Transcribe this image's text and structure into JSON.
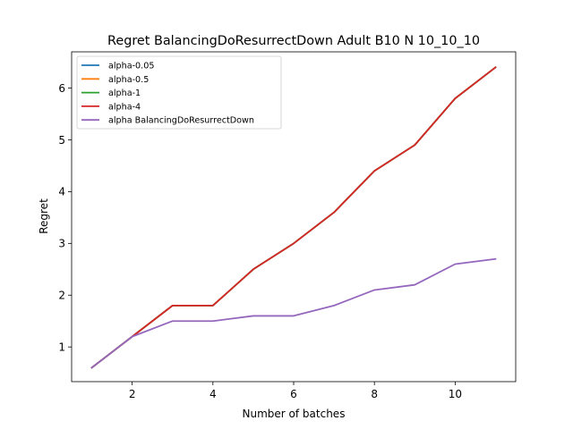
{
  "chart_data": {
    "type": "line",
    "title": "Regret BalancingDoResurrectDown Adult B10 N 10_10_10",
    "xlabel": "Number of batches",
    "ylabel": "Regret",
    "xlim": [
      0.5,
      11.5
    ],
    "ylim": [
      0.33,
      6.7
    ],
    "xticks": [
      2,
      4,
      6,
      8,
      10
    ],
    "yticks": [
      1,
      2,
      3,
      4,
      5,
      6
    ],
    "grid": false,
    "legend_position": "top-left",
    "x": [
      1,
      2,
      3,
      4,
      5,
      6,
      7,
      8,
      9,
      10,
      11
    ],
    "series": [
      {
        "name": "alpha-0.05",
        "color": "#1f77b4",
        "values": [
          0.6,
          1.2,
          1.8,
          1.8,
          2.5,
          3.0,
          3.6,
          4.4,
          4.9,
          5.8,
          6.4
        ]
      },
      {
        "name": "alpha-0.5",
        "color": "#ff7f0e",
        "values": [
          0.6,
          1.2,
          1.8,
          1.8,
          2.5,
          3.0,
          3.6,
          4.4,
          4.9,
          5.8,
          6.4
        ]
      },
      {
        "name": "alpha-1",
        "color": "#2ca02c",
        "values": [
          0.6,
          1.2,
          1.8,
          1.8,
          2.5,
          3.0,
          3.6,
          4.4,
          4.9,
          5.8,
          6.4
        ]
      },
      {
        "name": "alpha-4",
        "color": "#d62728",
        "values": [
          0.6,
          1.2,
          1.8,
          1.8,
          2.5,
          3.0,
          3.6,
          4.4,
          4.9,
          5.8,
          6.4
        ]
      },
      {
        "name": "alpha BalancingDoResurrectDown",
        "color": "#9467bd",
        "values": [
          0.6,
          1.2,
          1.5,
          1.5,
          1.6,
          1.6,
          1.8,
          2.1,
          2.2,
          2.6,
          2.7
        ]
      }
    ]
  }
}
